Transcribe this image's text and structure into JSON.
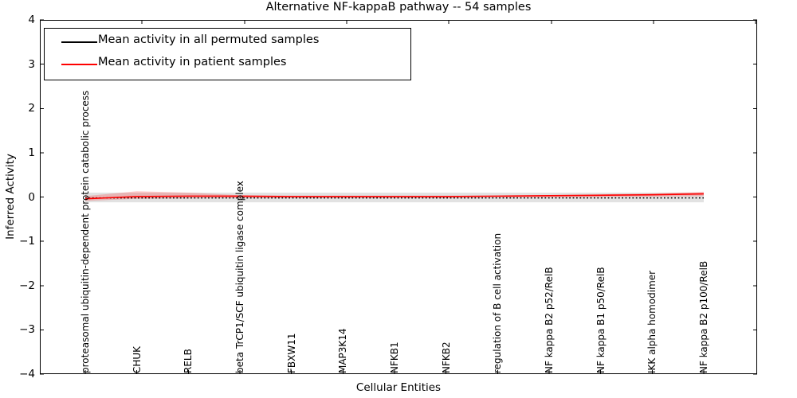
{
  "figure": {
    "title": "Alternative NF-kappaB pathway -- 54 samples",
    "xlabel": "Cellular Entities",
    "ylabel": "Inferred Activity"
  },
  "legend": {
    "position": "upper left",
    "items": [
      {
        "label": "Mean activity in all permuted samples",
        "color": "#000000"
      },
      {
        "label": "Mean activity in patient samples",
        "color": "#ff0000"
      }
    ]
  },
  "chart_data": {
    "type": "line",
    "title": "Alternative NF-kappaB pathway -- 54 samples",
    "xlabel": "Cellular Entities",
    "ylabel": "Inferred Activity",
    "ylim": [
      -4,
      4
    ],
    "yticks": [
      4,
      3,
      2,
      1,
      0,
      -1,
      -2,
      -3,
      -4
    ],
    "grid": false,
    "legend_position": "upper left",
    "categories": [
      "proteasomal ubiquitin-dependent protein catabolic process",
      "CHUK",
      "RELB",
      "beta TrCP1/SCF ubiquitin ligase complex",
      "FBXW11",
      "MAP3K14",
      "NFKB1",
      "NFKB2",
      "regulation of B cell activation",
      "NF kappa B2 p52/RelB",
      "NF kappa B1 p50/RelB",
      "IKK alpha homodimer",
      "NF kappa B2 p100/RelB"
    ],
    "series": [
      {
        "name": "Mean activity in all permuted samples",
        "color": "#000000",
        "line_style": "dotted",
        "values": [
          -0.02,
          -0.02,
          -0.02,
          -0.02,
          -0.02,
          -0.02,
          -0.02,
          -0.02,
          -0.02,
          -0.02,
          -0.02,
          -0.02,
          -0.02
        ],
        "band_upper": [
          0.1,
          0.1,
          0.1,
          0.1,
          0.1,
          0.1,
          0.1,
          0.1,
          0.1,
          0.1,
          0.1,
          0.1,
          0.1
        ],
        "band_lower": [
          -0.12,
          -0.12,
          -0.12,
          -0.12,
          -0.12,
          -0.12,
          -0.12,
          -0.12,
          -0.12,
          -0.12,
          -0.12,
          -0.12,
          -0.12
        ],
        "band_color": "rgba(190,190,190,0.45)"
      },
      {
        "name": "Mean activity in patient samples",
        "color": "#ff0000",
        "line_style": "solid",
        "values": [
          -0.04,
          0.01,
          0.02,
          0.02,
          0.01,
          0.01,
          0.01,
          0.01,
          0.02,
          0.03,
          0.04,
          0.05,
          0.07
        ],
        "band_upper": [
          0.02,
          0.13,
          0.1,
          0.04,
          0.03,
          0.03,
          0.03,
          0.03,
          0.03,
          0.04,
          0.06,
          0.08,
          0.12
        ],
        "band_lower": [
          -0.09,
          -0.04,
          -0.03,
          -0.02,
          -0.02,
          -0.02,
          -0.02,
          -0.02,
          -0.01,
          -0.01,
          0.0,
          0.01,
          0.02
        ],
        "band_color": "rgba(255,0,0,0.20)"
      }
    ]
  }
}
